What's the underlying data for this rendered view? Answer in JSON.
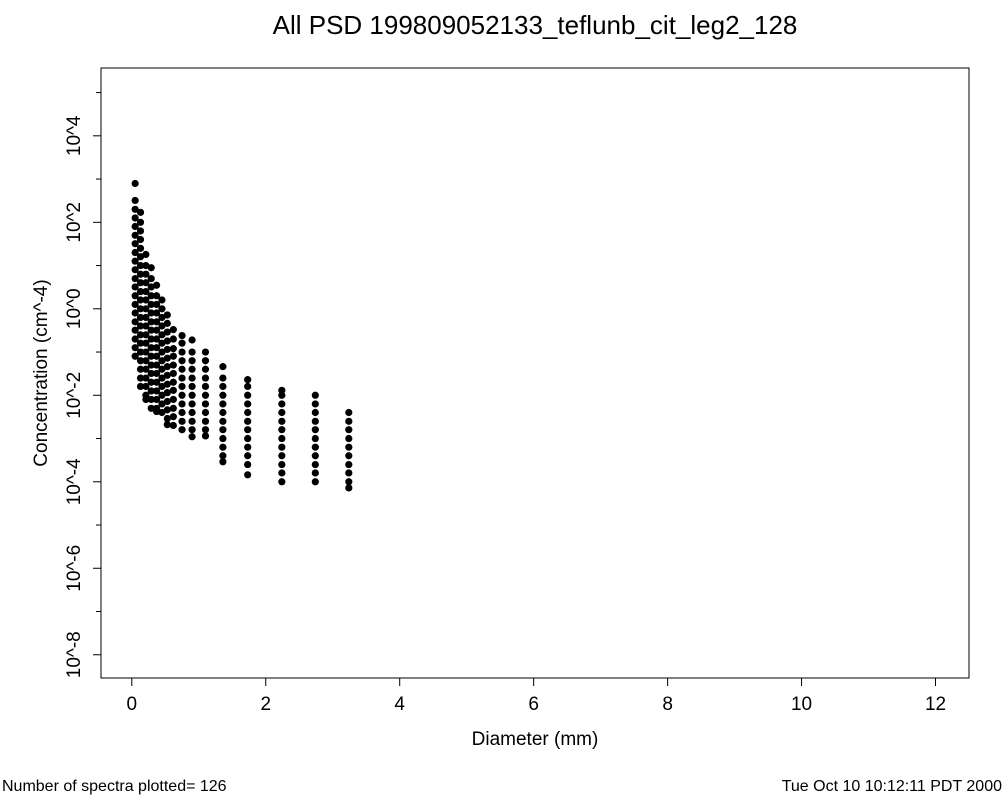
{
  "chart_data": {
    "type": "scatter",
    "title": "All PSD 199809052133_teflunb_cit_leg2_128",
    "x_label": "Diameter (mm)",
    "y_label": "Concentration (cm^-4)",
    "annotations": [
      "Number of spectra plotted= 126",
      "Tue Oct 10 10:12:11 PDT 2000"
    ],
    "ylog": true,
    "xlim": [
      -0.46,
      12.5
    ],
    "ylim": [
      2.9e-09,
      370000
    ],
    "xticks": [
      0,
      2,
      4,
      6,
      8,
      10,
      12
    ],
    "yticks": [
      {
        "value": 1e-08,
        "label": "10^-8"
      },
      {
        "value": 1e-06,
        "label": "10^-6"
      },
      {
        "value": 0.0001,
        "label": "10^-4"
      },
      {
        "value": 0.01,
        "label": "10^-2"
      },
      {
        "value": 1,
        "label": "10^0"
      },
      {
        "value": 100,
        "label": "10^2"
      },
      {
        "value": 10000,
        "label": "10^4"
      }
    ],
    "yminor": [
      1e-07,
      1e-05,
      0.001,
      0.1,
      10,
      1000,
      100000
    ],
    "series": [
      {
        "color": "#000000",
        "x": [
          0.05,
          0.05,
          0.05,
          0.05,
          0.05,
          0.05,
          0.05,
          0.05,
          0.05,
          0.05,
          0.05,
          0.05,
          0.05,
          0.05,
          0.05,
          0.05,
          0.05,
          0.05,
          0.05,
          0.05
        ],
        "y": [
          790,
          320,
          200,
          126,
          80,
          50,
          32,
          20,
          12.6,
          8,
          5,
          3.2,
          2,
          1.26,
          0.8,
          0.5,
          0.32,
          0.2,
          0.126,
          0.08
        ]
      },
      {
        "color": "#000000",
        "x": [
          0.13,
          0.13,
          0.13,
          0.13,
          0.13,
          0.13,
          0.13,
          0.13,
          0.13,
          0.13,
          0.13,
          0.13,
          0.13,
          0.13,
          0.13,
          0.13,
          0.13,
          0.13,
          0.13,
          0.13,
          0.13
        ],
        "y": [
          170,
          100,
          63,
          40,
          25,
          16,
          10,
          6.3,
          4,
          2.5,
          1.6,
          1,
          0.63,
          0.4,
          0.25,
          0.16,
          0.1,
          0.063,
          0.04,
          0.025,
          0.016
        ]
      },
      {
        "color": "#000000",
        "x": [
          0.21,
          0.21,
          0.21,
          0.21,
          0.21,
          0.21,
          0.21,
          0.21,
          0.21,
          0.21,
          0.21,
          0.21,
          0.21,
          0.21,
          0.21,
          0.21,
          0.21,
          0.21
        ],
        "y": [
          18,
          10,
          6.3,
          4,
          2.5,
          1.6,
          1,
          0.63,
          0.4,
          0.25,
          0.16,
          0.1,
          0.063,
          0.04,
          0.025,
          0.016,
          0.01,
          0.008
        ]
      },
      {
        "color": "#000000",
        "x": [
          0.29,
          0.29,
          0.29,
          0.29,
          0.29,
          0.29,
          0.29,
          0.29,
          0.29,
          0.29,
          0.29,
          0.29,
          0.29,
          0.29,
          0.29,
          0.29,
          0.29
        ],
        "y": [
          8.9,
          5,
          3.2,
          2,
          1.26,
          0.8,
          0.5,
          0.32,
          0.2,
          0.126,
          0.08,
          0.05,
          0.032,
          0.02,
          0.0126,
          0.008,
          0.005
        ]
      },
      {
        "color": "#000000",
        "x": [
          0.37,
          0.37,
          0.37,
          0.37,
          0.37,
          0.37,
          0.37,
          0.37,
          0.37,
          0.37,
          0.37,
          0.37,
          0.37,
          0.37,
          0.37,
          0.37
        ],
        "y": [
          3.5,
          2,
          1.26,
          0.8,
          0.5,
          0.32,
          0.2,
          0.126,
          0.08,
          0.05,
          0.032,
          0.02,
          0.0126,
          0.008,
          0.005,
          0.0042
        ]
      },
      {
        "color": "#000000",
        "x": [
          0.45,
          0.45,
          0.45,
          0.45,
          0.45,
          0.45,
          0.45,
          0.45,
          0.45,
          0.45,
          0.45,
          0.45,
          0.45,
          0.45
        ],
        "y": [
          1.6,
          1,
          0.63,
          0.4,
          0.25,
          0.16,
          0.1,
          0.063,
          0.04,
          0.025,
          0.016,
          0.01,
          0.0063,
          0.004
        ]
      },
      {
        "color": "#000000",
        "x": [
          0.53,
          0.53,
          0.53,
          0.53,
          0.53,
          0.53,
          0.53,
          0.53,
          0.53,
          0.53,
          0.53,
          0.53,
          0.53,
          0.53
        ],
        "y": [
          0.72,
          0.46,
          0.29,
          0.18,
          0.115,
          0.072,
          0.046,
          0.029,
          0.018,
          0.0115,
          0.0072,
          0.0046,
          0.0029,
          0.0021
        ]
      },
      {
        "color": "#000000",
        "x": [
          0.62,
          0.62,
          0.62,
          0.62,
          0.62,
          0.62,
          0.62,
          0.62,
          0.62,
          0.62,
          0.62,
          0.62
        ],
        "y": [
          0.33,
          0.2,
          0.12,
          0.08,
          0.05,
          0.032,
          0.02,
          0.013,
          0.008,
          0.005,
          0.0032,
          0.002
        ]
      },
      {
        "color": "#000000",
        "x": [
          0.75,
          0.75,
          0.75,
          0.75,
          0.75,
          0.75,
          0.75,
          0.75,
          0.75,
          0.75,
          0.75,
          0.75
        ],
        "y": [
          0.24,
          0.16,
          0.1,
          0.063,
          0.04,
          0.025,
          0.016,
          0.01,
          0.0063,
          0.004,
          0.0025,
          0.0016
        ]
      },
      {
        "color": "#000000",
        "x": [
          0.9,
          0.9,
          0.9,
          0.9,
          0.9,
          0.9,
          0.9,
          0.9,
          0.9,
          0.9,
          0.9,
          0.9
        ],
        "y": [
          0.19,
          0.1,
          0.063,
          0.04,
          0.025,
          0.016,
          0.01,
          0.0063,
          0.004,
          0.0025,
          0.0016,
          0.0011
        ]
      },
      {
        "color": "#000000",
        "x": [
          1.1,
          1.1,
          1.1,
          1.1,
          1.1,
          1.1,
          1.1,
          1.1,
          1.1,
          1.1,
          1.1
        ],
        "y": [
          0.1,
          0.063,
          0.04,
          0.025,
          0.016,
          0.01,
          0.0063,
          0.004,
          0.0025,
          0.0016,
          0.00115
        ]
      },
      {
        "color": "#000000",
        "x": [
          1.36,
          1.36,
          1.36,
          1.36,
          1.36,
          1.36,
          1.36,
          1.36,
          1.36,
          1.36,
          1.36,
          1.36
        ],
        "y": [
          0.046,
          0.025,
          0.016,
          0.01,
          0.0063,
          0.004,
          0.0025,
          0.0016,
          0.001,
          0.00063,
          0.0004,
          0.00029
        ]
      },
      {
        "color": "#000000",
        "x": [
          1.73,
          1.73,
          1.73,
          1.73,
          1.73,
          1.73,
          1.73,
          1.73,
          1.73,
          1.73,
          1.73,
          1.73
        ],
        "y": [
          0.023,
          0.016,
          0.01,
          0.0063,
          0.004,
          0.0025,
          0.0016,
          0.001,
          0.00063,
          0.0004,
          0.00025,
          0.000145
        ]
      },
      {
        "color": "#000000",
        "x": [
          2.24,
          2.24,
          2.24,
          2.24,
          2.24,
          2.24,
          2.24,
          2.24,
          2.24,
          2.24,
          2.24,
          2.24
        ],
        "y": [
          0.013,
          0.01,
          0.0063,
          0.004,
          0.0025,
          0.0016,
          0.001,
          0.00063,
          0.0004,
          0.00025,
          0.00016,
          0.0001
        ]
      },
      {
        "color": "#000000",
        "x": [
          2.74,
          2.74,
          2.74,
          2.74,
          2.74,
          2.74,
          2.74,
          2.74,
          2.74,
          2.74,
          2.74
        ],
        "y": [
          0.01,
          0.0063,
          0.004,
          0.0025,
          0.0016,
          0.001,
          0.00063,
          0.0004,
          0.00025,
          0.00016,
          0.0001
        ]
      },
      {
        "color": "#000000",
        "x": [
          3.24,
          3.24,
          3.24,
          3.24,
          3.24,
          3.24,
          3.24,
          3.24,
          3.24,
          3.24
        ],
        "y": [
          0.004,
          0.0025,
          0.0016,
          0.001,
          0.00063,
          0.0004,
          0.00025,
          0.00016,
          0.0001,
          7.2e-05
        ]
      }
    ]
  }
}
